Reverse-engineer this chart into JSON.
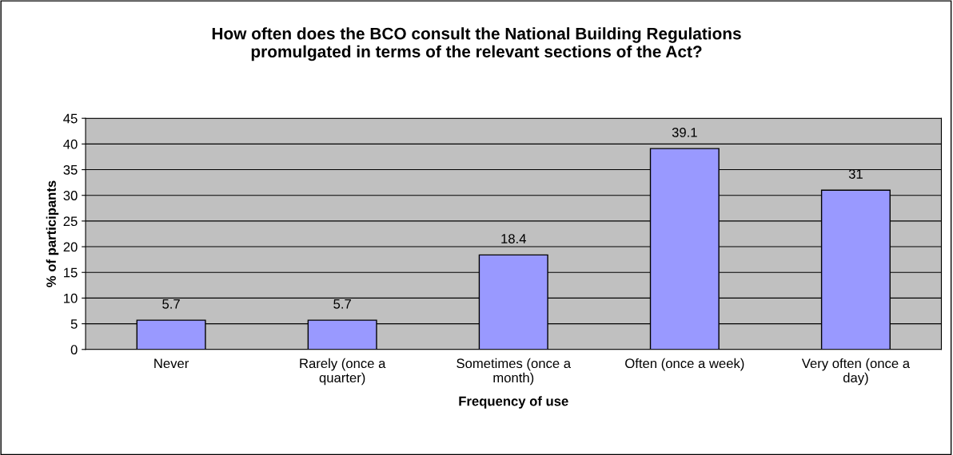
{
  "chart_data": {
    "type": "bar",
    "title": "How often does the BCO consult the National Building Regulations\npromulgated in terms of the relevant sections of the Act?",
    "xlabel": "Frequency of use",
    "ylabel": "% of participants",
    "categories": [
      "Never",
      "Rarely (once a\nquarter)",
      "Sometimes (once a\nmonth)",
      "Often (once a week)",
      "Very often (once a\nday)"
    ],
    "values": [
      5.7,
      5.7,
      18.4,
      39.1,
      31
    ],
    "color": "#9999ff",
    "ylim": [
      0,
      45
    ],
    "yticks": [
      0,
      5,
      10,
      15,
      20,
      25,
      30,
      35,
      40,
      45
    ],
    "grid": "y",
    "data_labels": true
  }
}
